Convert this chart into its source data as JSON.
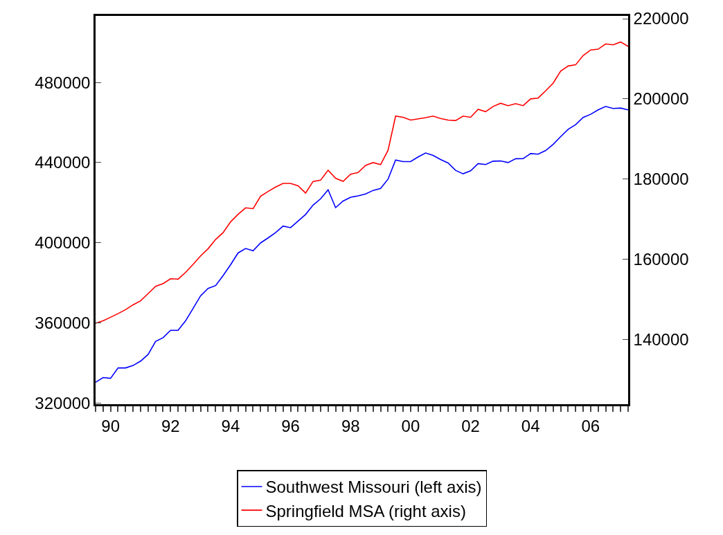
{
  "chart_data": {
    "type": "line",
    "categories": [
      null,
      null,
      "90",
      null,
      null,
      null,
      null,
      null,
      null,
      null,
      "92",
      null,
      null,
      null,
      null,
      null,
      null,
      null,
      "94",
      null,
      null,
      null,
      null,
      null,
      null,
      null,
      "96",
      null,
      null,
      null,
      null,
      null,
      null,
      null,
      "98",
      null,
      null,
      null,
      null,
      null,
      null,
      null,
      "00",
      null,
      null,
      null,
      null,
      null,
      null,
      null,
      "02",
      null,
      null,
      null,
      null,
      null,
      null,
      null,
      "04",
      null,
      null,
      null,
      null,
      null,
      null,
      null,
      "06",
      null,
      null,
      null,
      null,
      null
    ],
    "series": [
      {
        "name": "Southwest Missouri (left axis)",
        "color": "#0000ff",
        "axis": "y",
        "values": [
          330300,
          332700,
          332300,
          337500,
          337500,
          338700,
          340900,
          344200,
          350700,
          352600,
          356300,
          356300,
          361000,
          367200,
          373500,
          377200,
          378600,
          383600,
          389000,
          394900,
          397100,
          396000,
          399900,
          402400,
          405000,
          408300,
          407500,
          410800,
          414100,
          418800,
          421900,
          426400,
          417500,
          420800,
          422700,
          423400,
          424300,
          426100,
          427100,
          431800,
          441300,
          440500,
          440500,
          442800,
          444800,
          443600,
          441500,
          439800,
          436100,
          434400,
          435900,
          439500,
          439000,
          440700,
          440800,
          440000,
          441900,
          442000,
          444500,
          444200,
          446000,
          449100,
          452900,
          456600,
          458900,
          462500,
          464100,
          466300,
          468000,
          467000,
          467200,
          466300
        ]
      },
      {
        "name": "Springfield MSA (right axis)",
        "color": "#ff0000",
        "axis": "y2",
        "values": [
          144000,
          144600,
          145500,
          146400,
          147400,
          148600,
          149600,
          151400,
          153200,
          153900,
          155100,
          155000,
          156700,
          158700,
          160800,
          162600,
          164900,
          166600,
          169300,
          171200,
          172800,
          172600,
          175700,
          176900,
          178000,
          178900,
          178900,
          178300,
          176500,
          179400,
          179700,
          182200,
          180200,
          179400,
          181200,
          181600,
          183400,
          184100,
          183600,
          187200,
          195700,
          195400,
          194700,
          195000,
          195300,
          195700,
          195100,
          194700,
          194600,
          195700,
          195400,
          197400,
          196800,
          198100,
          198900,
          198300,
          198800,
          198300,
          200000,
          200200,
          202000,
          203900,
          206900,
          208200,
          208500,
          210800,
          212200,
          212400,
          213700,
          213500,
          214200,
          213100
        ]
      }
    ],
    "ylim": [
      319400,
      513200
    ],
    "yticks": [
      320000,
      360000,
      400000,
      440000,
      480000
    ],
    "y2lim": [
      123800,
      220700
    ],
    "y2ticks": [
      140000,
      160000,
      180000,
      200000,
      220000
    ],
    "legend": "bottom",
    "marker": "none",
    "line_style": "solid"
  }
}
